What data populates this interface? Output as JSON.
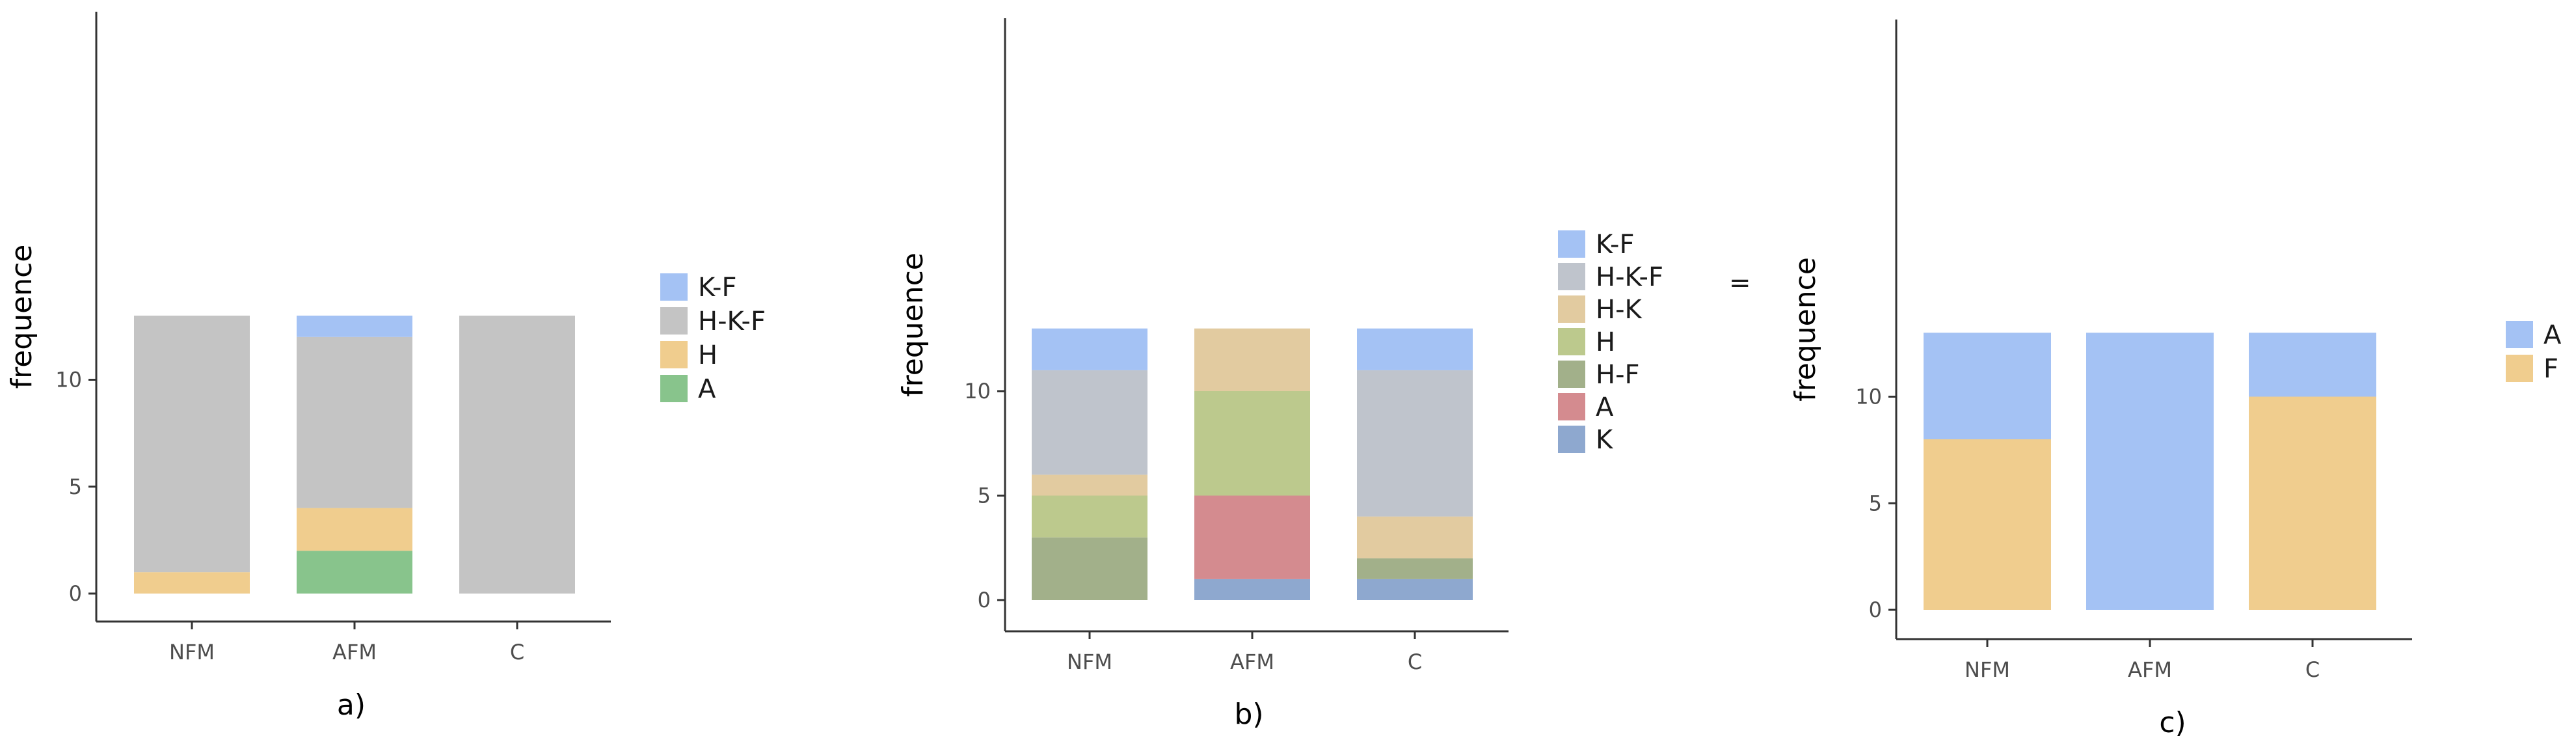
{
  "colors": {
    "K-F": "#a4c2f4",
    "H-K-F": "#bfc4cc",
    "H-K": "#e2cba0",
    "H": "#f0cd8e",
    "H-F": "#a2b08a",
    "A": "#88c48c",
    "K": "#8ea8cf"
  },
  "chart_data": [
    {
      "type": "bar",
      "stacked": true,
      "caption": "a)",
      "ylabel": "frequence",
      "xlabel": "",
      "categories": [
        "NFM",
        "AFM",
        "C"
      ],
      "ylim": [
        0,
        13
      ],
      "yticks": [
        0,
        5,
        10
      ],
      "grid": false,
      "legend_position": "right",
      "legend": [
        "K-F",
        "H-K-F",
        "H",
        "A"
      ],
      "stack_order": [
        "A",
        "H",
        "H-K-F",
        "K-F"
      ],
      "series": [
        {
          "name": "K-F",
          "color": "#a4c2f4",
          "values": [
            0,
            1,
            0
          ]
        },
        {
          "name": "H-K-F",
          "color": "#c4c4c4",
          "values": [
            12,
            8,
            13
          ]
        },
        {
          "name": "H",
          "color": "#f0cd8e",
          "values": [
            1,
            2,
            0
          ]
        },
        {
          "name": "A",
          "color": "#88c48c",
          "values": [
            0,
            2,
            0
          ]
        }
      ]
    },
    {
      "type": "bar",
      "stacked": true,
      "caption": "b)",
      "ylabel": "frequence",
      "xlabel": "",
      "categories": [
        "NFM",
        "AFM",
        "C"
      ],
      "ylim": [
        0,
        13
      ],
      "yticks": [
        0,
        5,
        10
      ],
      "grid": false,
      "legend_position": "right",
      "legend": [
        "K-F",
        "H-K-F",
        "H-K",
        "H",
        "H-F",
        "A",
        "K"
      ],
      "stack_order": [
        "K",
        "A",
        "H-F",
        "H",
        "H-K",
        "H-K-F",
        "K-F"
      ],
      "series": [
        {
          "name": "K-F",
          "color": "#a4c2f4",
          "values": [
            2,
            0,
            2
          ]
        },
        {
          "name": "H-K-F",
          "color": "#bfc4cc",
          "values": [
            5,
            0,
            7
          ]
        },
        {
          "name": "H-K",
          "color": "#e2cba0",
          "values": [
            1,
            3,
            2
          ]
        },
        {
          "name": "H",
          "color": "#bcc98d",
          "values": [
            2,
            5,
            0
          ]
        },
        {
          "name": "H-F",
          "color": "#a2b08a",
          "values": [
            3,
            0,
            1
          ]
        },
        {
          "name": "A",
          "color": "#d48b8f",
          "values": [
            0,
            4,
            0
          ]
        },
        {
          "name": "K",
          "color": "#8ea8cf",
          "values": [
            0,
            1,
            1
          ]
        }
      ]
    },
    {
      "type": "bar",
      "stacked": true,
      "caption": "c)",
      "ylabel": "frequence",
      "xlabel": "",
      "categories": [
        "NFM",
        "AFM",
        "C"
      ],
      "ylim": [
        0,
        13
      ],
      "yticks": [
        0,
        5,
        10
      ],
      "grid": false,
      "legend_position": "right",
      "legend": [
        "A",
        "F"
      ],
      "stack_order": [
        "F",
        "A"
      ],
      "series": [
        {
          "name": "A",
          "color": "#a4c2f4",
          "values": [
            5,
            13,
            3
          ]
        },
        {
          "name": "F",
          "color": "#f0cd8e",
          "values": [
            8,
            0,
            10
          ]
        }
      ]
    }
  ],
  "stray_mark": "="
}
